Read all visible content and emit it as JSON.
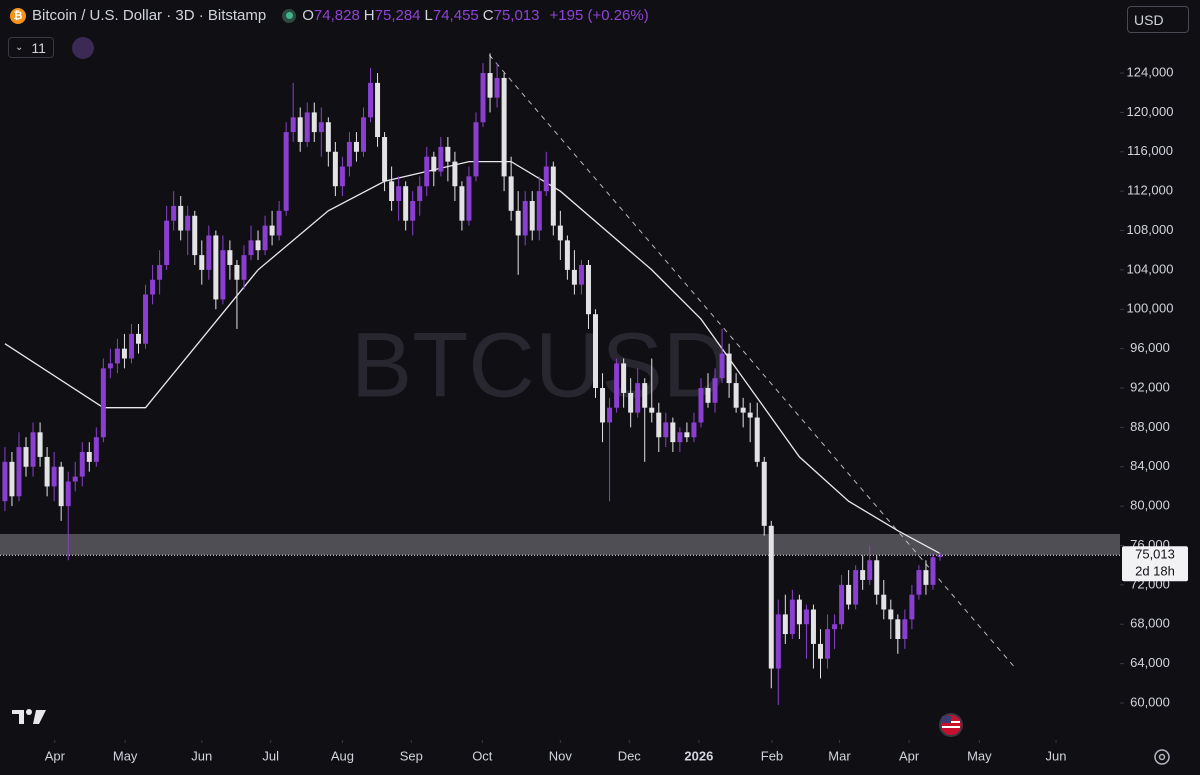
{
  "chart_data": {
    "type": "candlestick",
    "symbol": "Bitcoin / U.S. Dollar · 3D · Bitstamp",
    "ohlc_legend": [
      {
        "key": "O",
        "value": "74,828"
      },
      {
        "key": "H",
        "value": "75,284"
      },
      {
        "key": "L",
        "value": "74,455"
      },
      {
        "key": "C",
        "value": "75,013"
      }
    ],
    "change": "+195 (+0.26%)",
    "indicator_count": "11",
    "currency": "USD",
    "watermark": "BTCUSD",
    "up_color": "#8a3fd0",
    "down_color": "#e3e3e6",
    "open": [
      80500,
      84500,
      81000,
      86000,
      84000,
      87500,
      85000,
      82000,
      84000,
      80000,
      82500,
      83000,
      85500,
      84500,
      87000,
      94000,
      94500,
      96000,
      95000,
      97500,
      96500,
      101500,
      103000,
      104500,
      109000,
      110500,
      108000,
      109500,
      105500,
      104000,
      107500,
      101000,
      106000,
      104500,
      103000,
      105500,
      107000,
      106000,
      108500,
      107500,
      110000,
      118000,
      119500,
      117000,
      120000,
      118000,
      119000,
      116000,
      112500,
      114500,
      117000,
      116000,
      119500,
      123000,
      117500,
      113000,
      111000,
      112500,
      109000,
      111000,
      112500,
      115500,
      114000,
      116500,
      115000,
      112500,
      109000,
      113500,
      119000,
      124000,
      121500,
      123500,
      113500,
      110000,
      107500,
      111000,
      108000,
      112000,
      114500,
      108500,
      107000,
      104000,
      102500,
      104500,
      99500,
      92000,
      88500,
      90000,
      94500,
      91500,
      89500,
      92500,
      90000,
      89500,
      87000,
      88500,
      86500,
      87500,
      87000,
      88500,
      92000,
      90500,
      93000,
      95500,
      92500,
      90000,
      89500,
      89000,
      84500,
      78000,
      63500,
      69000,
      67000,
      70500,
      68000,
      69500,
      66000,
      64500,
      67500,
      68000,
      72000,
      70000,
      73500,
      72500,
      74500,
      71000,
      69500,
      68500,
      66500,
      68500,
      71000,
      73500,
      72000,
      74828
    ],
    "high": [
      86000,
      85500,
      87500,
      87000,
      88500,
      88500,
      86000,
      85500,
      84500,
      83500,
      84500,
      86500,
      86500,
      88000,
      95000,
      96000,
      97000,
      97500,
      98500,
      98500,
      102500,
      104500,
      106000,
      110500,
      112000,
      111500,
      110500,
      110000,
      107000,
      108500,
      108000,
      107500,
      107000,
      105000,
      106500,
      108500,
      108000,
      109500,
      110000,
      111000,
      119000,
      123000,
      120500,
      121000,
      121000,
      120500,
      119500,
      117000,
      115500,
      118000,
      118000,
      120500,
      124500,
      124000,
      118000,
      114500,
      113500,
      113000,
      112000,
      113500,
      116500,
      116000,
      117500,
      117500,
      116000,
      113000,
      114500,
      120000,
      125000,
      126000,
      125000,
      124000,
      115500,
      112000,
      112000,
      112000,
      113500,
      116000,
      115000,
      110000,
      107500,
      106000,
      105000,
      105000,
      100000,
      93500,
      91000,
      95000,
      95000,
      93000,
      94000,
      93000,
      95000,
      90500,
      89500,
      89000,
      88000,
      88500,
      89500,
      93000,
      93500,
      94000,
      98000,
      96500,
      93500,
      91000,
      90500,
      90500,
      85000,
      78500,
      70500,
      71000,
      71500,
      71000,
      70000,
      70000,
      67500,
      69000,
      69000,
      73000,
      73500,
      74000,
      75000,
      76000,
      75000,
      72500,
      70500,
      69000,
      69500,
      72000,
      74000,
      74500,
      75200,
      75284
    ],
    "low": [
      79500,
      80000,
      80500,
      83000,
      83000,
      84000,
      81000,
      80500,
      78500,
      74500,
      81500,
      82000,
      83500,
      84000,
      86500,
      93000,
      93500,
      94000,
      94500,
      95500,
      96000,
      100500,
      101500,
      104000,
      108000,
      107000,
      105500,
      104500,
      102500,
      103000,
      100000,
      100500,
      103000,
      98000,
      102000,
      105000,
      105000,
      105500,
      106500,
      107000,
      109500,
      117000,
      116000,
      116500,
      117000,
      115500,
      114500,
      111500,
      111500,
      113500,
      115000,
      115500,
      119000,
      116500,
      112000,
      110000,
      109000,
      108000,
      107500,
      109500,
      111500,
      112500,
      113500,
      113000,
      111000,
      108000,
      108500,
      113000,
      118500,
      120000,
      120500,
      112000,
      109000,
      103500,
      106500,
      107000,
      107000,
      111500,
      107500,
      105000,
      103000,
      101500,
      101500,
      98000,
      91000,
      86500,
      80500,
      89500,
      90000,
      88000,
      89000,
      84500,
      88500,
      85500,
      86000,
      85500,
      85500,
      86500,
      86500,
      88000,
      90000,
      89500,
      92500,
      91000,
      89500,
      88000,
      86500,
      84000,
      77000,
      61500,
      59800,
      66000,
      66500,
      66500,
      64500,
      63500,
      62500,
      63500,
      65500,
      67500,
      69500,
      69500,
      71500,
      72000,
      70000,
      68500,
      66500,
      65000,
      65500,
      67500,
      70500,
      71000,
      71500,
      74455
    ],
    "close": [
      84500,
      81000,
      86000,
      84000,
      87500,
      85000,
      82000,
      84000,
      80000,
      82500,
      83000,
      85500,
      84500,
      87000,
      94000,
      94500,
      96000,
      95000,
      97500,
      96500,
      101500,
      103000,
      104500,
      109000,
      110500,
      108000,
      109500,
      105500,
      104000,
      107500,
      101000,
      106000,
      104500,
      103000,
      105500,
      107000,
      106000,
      108500,
      107500,
      110000,
      118000,
      119500,
      117000,
      120000,
      118000,
      119000,
      116000,
      112500,
      114500,
      117000,
      116000,
      119500,
      123000,
      117500,
      113000,
      111000,
      112500,
      109000,
      111000,
      112500,
      115500,
      114000,
      116500,
      115000,
      112500,
      109000,
      113500,
      119000,
      124000,
      121500,
      123500,
      113500,
      110000,
      107500,
      111000,
      108000,
      112000,
      114500,
      108500,
      107000,
      104000,
      102500,
      104500,
      99500,
      92000,
      88500,
      90000,
      94500,
      91500,
      89500,
      92500,
      90000,
      89500,
      87000,
      88500,
      86500,
      87500,
      87000,
      88500,
      92000,
      90500,
      93000,
      95500,
      92500,
      90000,
      89500,
      89000,
      84500,
      78000,
      63500,
      69000,
      67000,
      70500,
      68000,
      69500,
      66000,
      64500,
      67500,
      68000,
      72000,
      70000,
      73500,
      72500,
      74500,
      71000,
      69500,
      68500,
      66500,
      68500,
      71000,
      73500,
      72000,
      74800,
      75013
    ],
    "moving_average": {
      "color": "#e8e8ea",
      "x": [
        0,
        14,
        20,
        28,
        36,
        46,
        54,
        66,
        72,
        79,
        92,
        99,
        106,
        113,
        120,
        127,
        133
      ],
      "values": [
        96500,
        90000,
        90000,
        97000,
        104000,
        110000,
        113000,
        115000,
        115000,
        112000,
        104000,
        99000,
        92000,
        85000,
        80500,
        77500,
        75200
      ]
    },
    "trendline": {
      "x": [
        68.9,
        143.7
      ],
      "values": [
        125829,
        63556
      ]
    },
    "zone": [
      75035,
      77170
    ],
    "last_price": {
      "value": 75013,
      "label": "75,013",
      "countdown": "2d 18h"
    },
    "xlim": [
      -0.7,
      158.6
    ],
    "xticks": [
      {
        "value": 7.1,
        "label": "Apr"
      },
      {
        "value": 17.1,
        "label": "May"
      },
      {
        "value": 28.0,
        "label": "Jun"
      },
      {
        "value": 37.8,
        "label": "Jul"
      },
      {
        "value": 48.0,
        "label": "Aug"
      },
      {
        "value": 57.8,
        "label": "Sep"
      },
      {
        "value": 67.9,
        "label": "Oct"
      },
      {
        "value": 79.0,
        "label": "Nov"
      },
      {
        "value": 88.8,
        "label": "Dec"
      },
      {
        "value": 98.7,
        "label": "2026"
      },
      {
        "value": 109.1,
        "label": "Feb"
      },
      {
        "value": 118.7,
        "label": "Mar"
      },
      {
        "value": 128.6,
        "label": "Apr"
      },
      {
        "value": 138.6,
        "label": "May"
      },
      {
        "value": 149.5,
        "label": "Jun"
      }
    ],
    "ylim": [
      56240,
      131420
    ],
    "yticks": [
      {
        "value": 60000,
        "label": "60,000"
      },
      {
        "value": 64000,
        "label": "64,000"
      },
      {
        "value": 68000,
        "label": "68,000"
      },
      {
        "value": 72000,
        "label": "72,000"
      },
      {
        "value": 76000,
        "label": "76,000"
      },
      {
        "value": 80000,
        "label": "80,000"
      },
      {
        "value": 84000,
        "label": "84,000"
      },
      {
        "value": 88000,
        "label": "88,000"
      },
      {
        "value": 92000,
        "label": "92,000"
      },
      {
        "value": 96000,
        "label": "96,000"
      },
      {
        "value": 100000,
        "label": "100,000"
      },
      {
        "value": 104000,
        "label": "104,000"
      },
      {
        "value": 108000,
        "label": "108,000"
      },
      {
        "value": 112000,
        "label": "112,000"
      },
      {
        "value": 116000,
        "label": "116,000"
      },
      {
        "value": 120000,
        "label": "120,000"
      },
      {
        "value": 124000,
        "label": "124,000"
      }
    ],
    "grid": false
  }
}
